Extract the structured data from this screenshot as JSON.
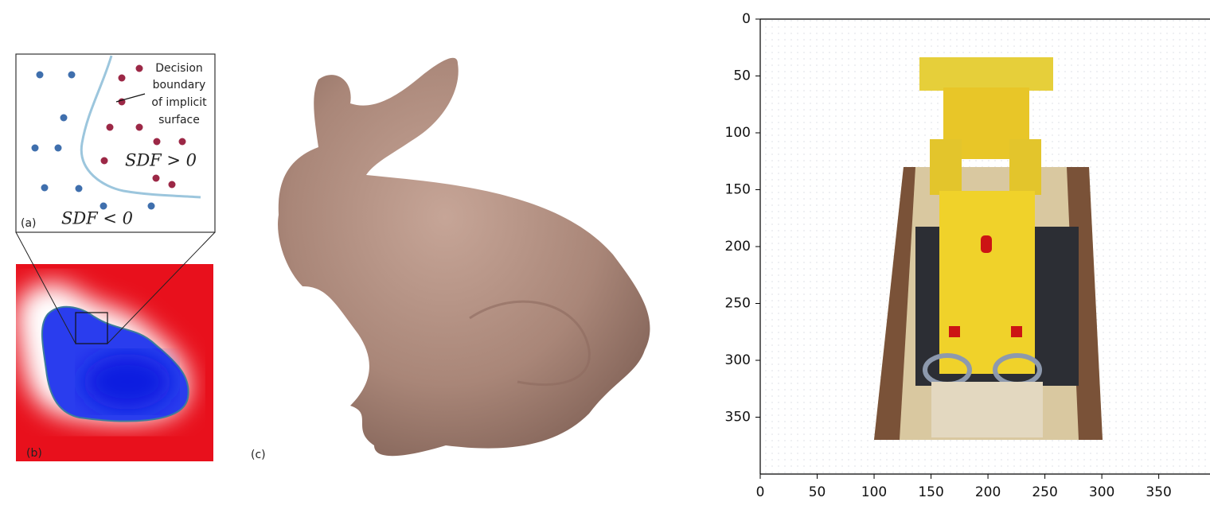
{
  "panel_a": {
    "label": "(a)",
    "annotation": [
      "Decision",
      "boundary",
      "of implicit",
      "surface"
    ],
    "sdf_positive": "SDF > 0",
    "sdf_negative": "SDF < 0"
  },
  "panel_b": {
    "label": "(b)"
  },
  "panel_c": {
    "label": "(c)"
  },
  "image_plot": {
    "xlim": [
      0,
      395
    ],
    "ylim": [
      400,
      0
    ],
    "xticks": [
      0,
      50,
      100,
      150,
      200,
      250,
      300,
      350
    ],
    "yticks": [
      0,
      50,
      100,
      150,
      200,
      250,
      300,
      350
    ]
  }
}
